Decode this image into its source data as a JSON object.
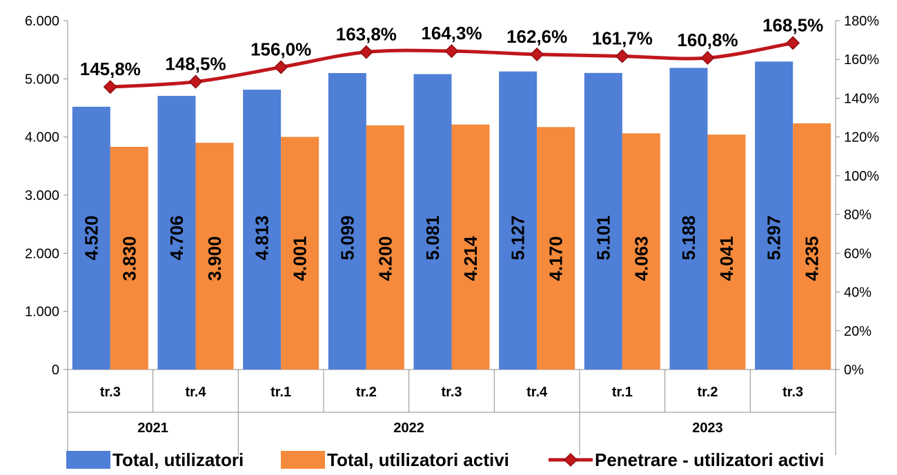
{
  "chart_data": {
    "type": "bar",
    "categories": [
      "tr.3",
      "tr.4",
      "tr.1",
      "tr.2",
      "tr.3",
      "tr.4",
      "tr.1",
      "tr.2",
      "tr.3"
    ],
    "groups": [
      {
        "label": "2021",
        "span": 2
      },
      {
        "label": "2022",
        "span": 4
      },
      {
        "label": "2023",
        "span": 3
      }
    ],
    "series": [
      {
        "name": "Total, utilizatori",
        "kind": "bar",
        "axis": "left",
        "color": "#4F7FD6",
        "values": [
          4520,
          4706,
          4813,
          5099,
          5081,
          5127,
          5101,
          5188,
          5297
        ],
        "labels": [
          "4.520",
          "4.706",
          "4.813",
          "5.099",
          "5.081",
          "5.127",
          "5.101",
          "5.188",
          "5.297"
        ]
      },
      {
        "name": "Total, utilizatori activi",
        "kind": "bar",
        "axis": "left",
        "color": "#F58A3C",
        "values": [
          3830,
          3900,
          4001,
          4200,
          4214,
          4170,
          4063,
          4041,
          4235
        ],
        "labels": [
          "3.830",
          "3.900",
          "4.001",
          "4.200",
          "4.214",
          "4.170",
          "4.063",
          "4.041",
          "4.235"
        ]
      },
      {
        "name": "Penetrare - utilizatori activi",
        "kind": "line",
        "axis": "right",
        "color": "#C0171C",
        "values": [
          145.8,
          148.5,
          156.0,
          163.8,
          164.3,
          162.6,
          161.7,
          160.8,
          168.5
        ],
        "labels": [
          "145,8%",
          "148,5%",
          "156,0%",
          "163,8%",
          "164,3%",
          "162,6%",
          "161,7%",
          "160,8%",
          "168,5%"
        ]
      }
    ],
    "ylim": [
      0,
      6000
    ],
    "y_ticks": [
      0,
      1000,
      2000,
      3000,
      4000,
      5000,
      6000
    ],
    "y_tick_labels": [
      "0",
      "1.000",
      "2.000",
      "3.000",
      "4.000",
      "5.000",
      "6.000"
    ],
    "y2lim": [
      0,
      180
    ],
    "y2_ticks": [
      0,
      20,
      40,
      60,
      80,
      100,
      120,
      140,
      160,
      180
    ],
    "y2_tick_labels": [
      "0%",
      "20%",
      "40%",
      "60%",
      "80%",
      "100%",
      "120%",
      "140%",
      "160%",
      "180%"
    ],
    "grid": false,
    "legend_position": "bottom"
  }
}
